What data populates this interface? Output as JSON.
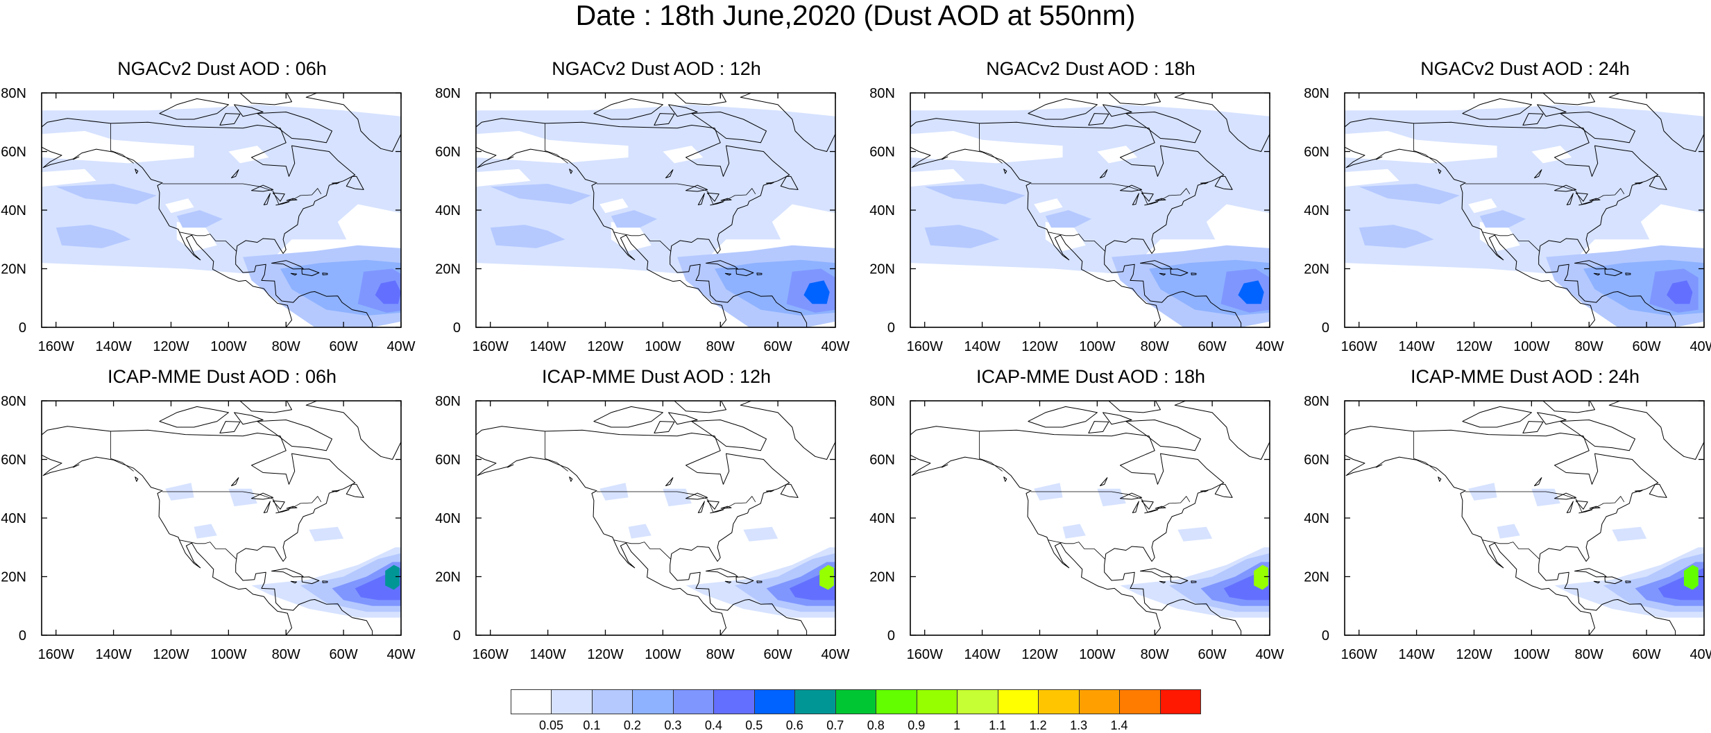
{
  "title": "Date : 18th June,2020 (Dust AOD at 550nm)",
  "x_tick_labels": [
    "160W",
    "140W",
    "120W",
    "100W",
    "80W",
    "60W",
    "40W"
  ],
  "y_tick_labels": [
    "0",
    "20N",
    "40N",
    "60N",
    "80N"
  ],
  "map_extent": {
    "lon_min": -165,
    "lon_max": -40,
    "lat_min": 0,
    "lat_max": 80
  },
  "panels": [
    {
      "title": "NGACv2 Dust AOD : 06h",
      "model": "NGACv2",
      "forecast_hour": "06h",
      "plume_peak_aod": 0.4
    },
    {
      "title": "NGACv2 Dust AOD : 12h",
      "model": "NGACv2",
      "forecast_hour": "12h",
      "plume_peak_aod": 0.5
    },
    {
      "title": "NGACv2 Dust AOD : 18h",
      "model": "NGACv2",
      "forecast_hour": "18h",
      "plume_peak_aod": 0.5
    },
    {
      "title": "NGACv2 Dust AOD : 24h",
      "model": "NGACv2",
      "forecast_hour": "24h",
      "plume_peak_aod": 0.4
    },
    {
      "title": "ICAP-MME Dust AOD : 06h",
      "model": "ICAP-MME",
      "forecast_hour": "06h",
      "plume_peak_aod": 0.6
    },
    {
      "title": "ICAP-MME Dust AOD : 12h",
      "model": "ICAP-MME",
      "forecast_hour": "12h",
      "plume_peak_aod": 0.9
    },
    {
      "title": "ICAP-MME Dust AOD : 18h",
      "model": "ICAP-MME",
      "forecast_hour": "18h",
      "plume_peak_aod": 0.9
    },
    {
      "title": "ICAP-MME Dust AOD : 24h",
      "model": "ICAP-MME",
      "forecast_hour": "24h",
      "plume_peak_aod": 0.8
    }
  ],
  "colorbar": {
    "labels": [
      "0.05",
      "0.1",
      "0.2",
      "0.3",
      "0.4",
      "0.5",
      "0.6",
      "0.7",
      "0.8",
      "0.9",
      "1",
      "1.1",
      "1.2",
      "1.3",
      "1.4"
    ],
    "colors": [
      "#ffffff",
      "#d6e2ff",
      "#b5c9ff",
      "#8eb2ff",
      "#7f96ff",
      "#6370ff",
      "#0063ff",
      "#009696",
      "#00c633",
      "#63ff00",
      "#96ff00",
      "#c6ff33",
      "#ffff00",
      "#ffc600",
      "#ffa000",
      "#ff7c00",
      "#ff1900"
    ]
  }
}
